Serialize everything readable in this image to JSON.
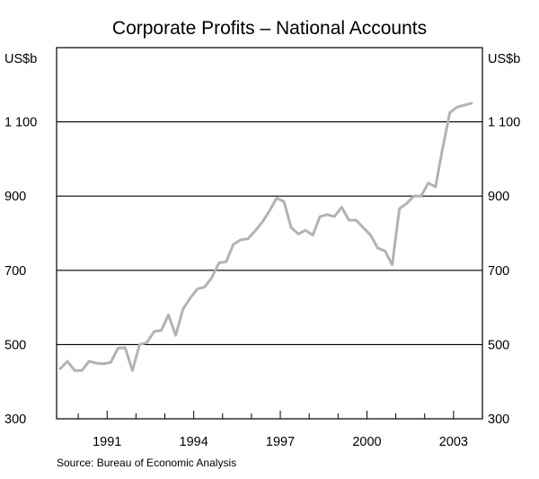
{
  "chart_data": {
    "type": "line",
    "title": "Corporate Profits – National Accounts",
    "ylabel_left": "US$b",
    "ylabel_right": "US$b",
    "source": "Source: Bureau of Economic Analysis",
    "ylim": [
      300,
      1300
    ],
    "xlim": [
      1989.25,
      2004.0
    ],
    "gridlines": [
      500,
      700,
      900,
      1100
    ],
    "y_ticks": [
      {
        "value": 300,
        "label": "300"
      },
      {
        "value": 500,
        "label": "500"
      },
      {
        "value": 700,
        "label": "700"
      },
      {
        "value": 900,
        "label": "900"
      },
      {
        "value": 1100,
        "label": "1 100"
      }
    ],
    "x_ticks": [
      {
        "value": 1991,
        "label": "1991"
      },
      {
        "value": 1994,
        "label": "1994"
      },
      {
        "value": 1997,
        "label": "1997"
      },
      {
        "value": 2000,
        "label": "2000"
      },
      {
        "value": 2003,
        "label": "2003"
      }
    ],
    "series": [
      {
        "name": "Corporate profits",
        "color": "#b3b3b3",
        "x": [
          1989.375,
          1989.625,
          1989.875,
          1990.125,
          1990.375,
          1990.625,
          1990.875,
          1991.125,
          1991.375,
          1991.625,
          1991.875,
          1992.125,
          1992.375,
          1992.625,
          1992.875,
          1993.125,
          1993.375,
          1993.625,
          1993.875,
          1994.125,
          1994.375,
          1994.625,
          1994.875,
          1995.125,
          1995.375,
          1995.625,
          1995.875,
          1996.125,
          1996.375,
          1996.625,
          1996.875,
          1997.125,
          1997.375,
          1997.625,
          1997.875,
          1998.125,
          1998.375,
          1998.625,
          1998.875,
          1999.125,
          1999.375,
          1999.625,
          1999.875,
          2000.125,
          2000.375,
          2000.625,
          2000.875,
          2001.125,
          2001.375,
          2001.625,
          2001.875,
          2002.125,
          2002.375,
          2002.625,
          2002.875,
          2003.125,
          2003.375,
          2003.625
        ],
        "values": [
          435,
          455,
          430,
          430,
          455,
          450,
          448,
          452,
          490,
          492,
          430,
          500,
          505,
          535,
          538,
          580,
          525,
          595,
          625,
          650,
          655,
          680,
          720,
          723,
          770,
          782,
          785,
          806,
          830,
          860,
          895,
          885,
          815,
          798,
          808,
          795,
          845,
          850,
          845,
          870,
          835,
          835,
          815,
          795,
          760,
          752,
          715,
          866,
          880,
          900,
          900,
          935,
          925,
          1030,
          1125,
          1140,
          1145,
          1150
        ]
      }
    ]
  }
}
